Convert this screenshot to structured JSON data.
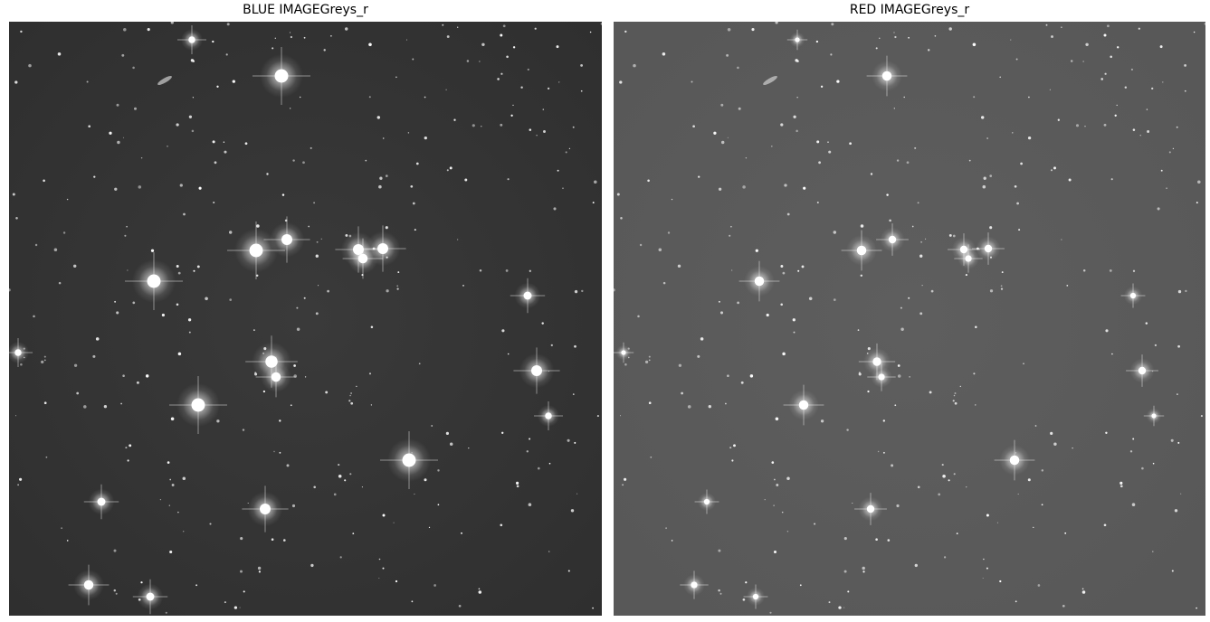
{
  "figure": {
    "panels": [
      {
        "id": "blue",
        "title": "BLUE IMAGEGreys_r",
        "background_color": "#3a3a3a",
        "background_edge_color": "#2e2e2e",
        "star_color": "#ffffff"
      },
      {
        "id": "red",
        "title": "RED IMAGEGreys_r",
        "background_color": "#5e5e5e",
        "background_edge_color": "#575757",
        "star_color": "#ffffff"
      }
    ],
    "colormap": "Greys_r"
  }
}
